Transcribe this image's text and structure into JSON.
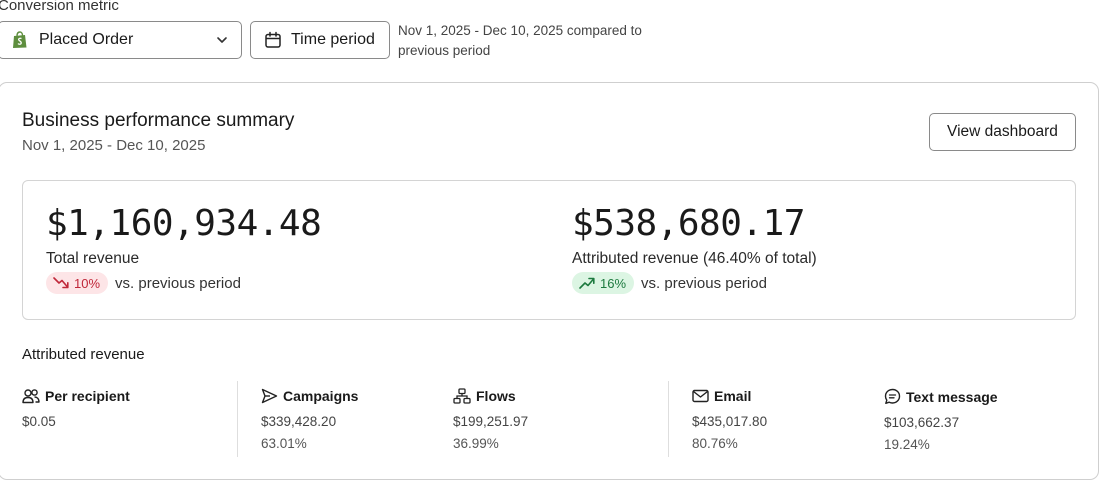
{
  "filters": {
    "conversion_metric_label": "Conversion metric",
    "metric_select_value": "Placed Order",
    "time_period_label": "Time period",
    "period_note": "Nov 1, 2025 - Dec 10, 2025 compared to previous period"
  },
  "summary": {
    "title": "Business performance summary",
    "date_range": "Nov 1, 2025 - Dec 10, 2025",
    "view_dashboard_label": "View dashboard",
    "total": {
      "amount": "$1,160,934.48",
      "label": "Total revenue",
      "change": "10%",
      "direction": "down",
      "change_suffix": "vs. previous period"
    },
    "attributed": {
      "amount": "$538,680.17",
      "label": "Attributed revenue (46.40% of total)",
      "change": "16%",
      "direction": "up",
      "change_suffix": "vs. previous period"
    }
  },
  "attributed_revenue": {
    "title": "Attributed revenue",
    "metrics": [
      {
        "icon": "users-icon",
        "label": "Per recipient",
        "value": "$0.05",
        "pct": ""
      },
      {
        "icon": "send-icon",
        "label": "Campaigns",
        "value": "$339,428.20",
        "pct": "63.01%"
      },
      {
        "icon": "flow-icon",
        "label": "Flows",
        "value": "$199,251.97",
        "pct": "36.99%"
      },
      {
        "icon": "mail-icon",
        "label": "Email",
        "value": "$435,017.80",
        "pct": "80.76%"
      },
      {
        "icon": "message-icon",
        "label": "Text message",
        "value": "$103,662.37",
        "pct": "19.24%"
      }
    ]
  },
  "colors": {
    "negative_bg": "#fde5e7",
    "negative_fg": "#c0283a",
    "positive_bg": "#dcf5e3",
    "positive_fg": "#1d7a3f",
    "shopify_green": "#5e8e3e"
  }
}
